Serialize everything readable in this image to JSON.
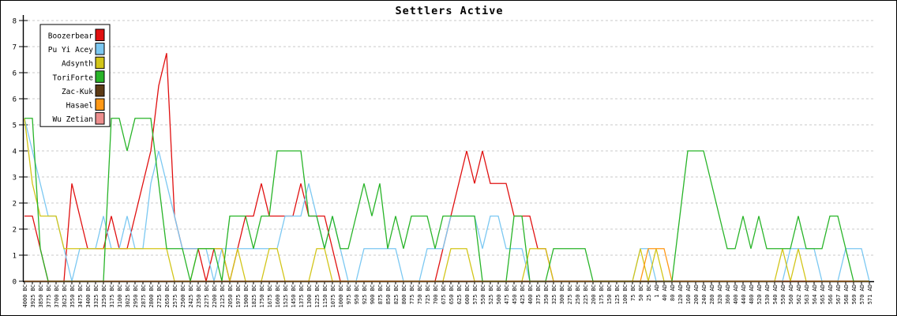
{
  "title": "Settlers Active",
  "colors": {
    "grid": "#c9c9c9",
    "axis": "#000000",
    "background": "#ffffff"
  },
  "chart_data": {
    "type": "line",
    "title": "Settlers Active",
    "ylim": [
      0,
      8
    ],
    "grid": "dashed-horizontal",
    "legend_position": "top-left",
    "y_ticks": {
      "values": [
        0,
        0.8,
        1.6,
        2.4,
        3.2,
        4.0,
        4.8,
        5.6,
        6.4,
        7.2,
        8.0
      ],
      "labels": [
        "0",
        "1",
        "2",
        "2",
        "3",
        "4",
        "5",
        "6",
        "6",
        "7",
        "8"
      ]
    },
    "x_tick_labels": [
      "4000 BC",
      "3925 BC",
      "3850 BC",
      "3775 BC",
      "3700 BC",
      "3625 BC",
      "3550 BC",
      "3475 BC",
      "3400 BC",
      "3325 BC",
      "3250 BC",
      "3175 BC",
      "3100 BC",
      "3025 BC",
      "2950 BC",
      "2875 BC",
      "2800 BC",
      "2725 BC",
      "2650 BC",
      "2575 BC",
      "2500 BC",
      "2425 BC",
      "2350 BC",
      "2275 BC",
      "2200 BC",
      "2125 BC",
      "2050 BC",
      "1975 BC",
      "1900 BC",
      "1825 BC",
      "1750 BC",
      "1675 BC",
      "1600 BC",
      "1525 BC",
      "1450 BC",
      "1375 BC",
      "1300 BC",
      "1225 BC",
      "1150 BC",
      "1075 BC",
      "1000 BC",
      "975 BC",
      "950 BC",
      "925 BC",
      "900 BC",
      "875 BC",
      "850 BC",
      "825 BC",
      "800 BC",
      "775 BC",
      "750 BC",
      "725 BC",
      "700 BC",
      "675 BC",
      "650 BC",
      "625 BC",
      "600 BC",
      "575 BC",
      "550 BC",
      "525 BC",
      "500 BC",
      "475 BC",
      "450 BC",
      "425 BC",
      "400 BC",
      "375 BC",
      "350 BC",
      "325 BC",
      "300 BC",
      "275 BC",
      "250 BC",
      "225 BC",
      "200 BC",
      "175 BC",
      "150 BC",
      "125 BC",
      "100 BC",
      "75 BC",
      "50 BC",
      "25 BC",
      "1 AD",
      "40 AD",
      "80 AD",
      "120 AD",
      "160 AD",
      "200 AD",
      "240 AD",
      "280 AD",
      "320 AD",
      "360 AD",
      "400 AD",
      "440 AD",
      "480 AD",
      "520 AD",
      "530 AD",
      "540 AD",
      "550 AD",
      "560 AD",
      "562 AD",
      "563 AD",
      "564 AD",
      "565 AD",
      "566 AD",
      "567 AD",
      "568 AD",
      "569 AD",
      "570 AD",
      "571 AD"
    ],
    "series": [
      {
        "name": "Boozerbear",
        "color": "#e01010",
        "values": [
          2,
          2,
          1,
          0,
          0,
          0,
          3,
          2,
          1,
          1,
          1,
          2,
          1,
          1,
          2,
          3,
          4,
          6,
          7,
          2,
          1,
          1,
          1,
          0,
          1,
          1,
          0,
          1,
          2,
          2,
          3,
          2,
          2,
          2,
          2,
          3,
          2,
          2,
          2,
          1,
          0,
          0,
          0,
          0,
          0,
          0,
          0,
          0,
          0,
          0,
          0,
          0,
          0,
          1,
          2,
          3,
          4,
          3,
          4,
          3,
          3,
          3,
          2,
          2,
          2,
          1,
          1,
          0,
          0,
          0,
          0,
          0,
          0,
          0,
          0,
          0,
          0,
          0,
          0,
          0,
          0,
          0,
          0,
          0,
          0,
          0,
          0,
          0,
          0,
          0,
          0,
          0,
          0,
          0,
          0,
          0,
          0,
          0,
          0,
          0,
          0,
          0,
          0,
          0,
          0,
          0,
          0,
          0
        ]
      },
      {
        "name": "Pu Yi Acey",
        "color": "#7bc8f2",
        "values": [
          5,
          4,
          3,
          2,
          2,
          1,
          0,
          1,
          1,
          1,
          2,
          1,
          1,
          2,
          1,
          1,
          3,
          4,
          3,
          2,
          1,
          1,
          1,
          1,
          0,
          1,
          1,
          1,
          1,
          1,
          1,
          1,
          1,
          2,
          2,
          2,
          3,
          2,
          1,
          2,
          1,
          0,
          0,
          1,
          1,
          1,
          1,
          1,
          0,
          0,
          0,
          1,
          1,
          1,
          2,
          2,
          2,
          2,
          1,
          2,
          2,
          1,
          1,
          1,
          0,
          0,
          0,
          0,
          0,
          0,
          0,
          0,
          0,
          0,
          0,
          0,
          0,
          0,
          1,
          1,
          0,
          0,
          0,
          0,
          0,
          0,
          0,
          0,
          0,
          0,
          0,
          0,
          0,
          0,
          0,
          0,
          0,
          1,
          1,
          1,
          1,
          0,
          0,
          0,
          1,
          1,
          1,
          0
        ]
      },
      {
        "name": "Adsynth",
        "color": "#d2c518",
        "values": [
          5,
          3,
          2,
          2,
          2,
          1,
          1,
          1,
          1,
          1,
          1,
          1,
          1,
          1,
          1,
          1,
          1,
          1,
          1,
          0,
          0,
          0,
          1,
          1,
          1,
          1,
          0,
          1,
          0,
          0,
          0,
          1,
          1,
          0,
          0,
          0,
          0,
          1,
          1,
          0,
          0,
          0,
          0,
          0,
          0,
          0,
          0,
          0,
          0,
          0,
          0,
          0,
          0,
          0,
          1,
          1,
          1,
          0,
          0,
          0,
          0,
          0,
          0,
          0,
          1,
          1,
          1,
          0,
          0,
          0,
          0,
          0,
          0,
          0,
          0,
          0,
          0,
          0,
          1,
          0,
          1,
          0,
          0,
          0,
          0,
          0,
          0,
          0,
          0,
          0,
          0,
          0,
          0,
          0,
          0,
          0,
          1,
          0,
          1,
          0,
          0,
          0,
          0,
          0,
          0,
          0,
          0,
          0
        ]
      },
      {
        "name": "ToriForte",
        "color": "#28b428",
        "values": [
          5,
          5,
          1,
          0,
          0,
          0,
          0,
          0,
          0,
          0,
          0,
          5,
          5,
          4,
          5,
          5,
          5,
          3,
          1,
          1,
          1,
          0,
          1,
          1,
          1,
          0,
          2,
          2,
          2,
          1,
          2,
          2,
          4,
          4,
          4,
          4,
          2,
          2,
          1,
          2,
          1,
          1,
          2,
          3,
          2,
          3,
          1,
          2,
          1,
          2,
          2,
          2,
          1,
          2,
          2,
          2,
          2,
          2,
          0,
          0,
          0,
          0,
          2,
          2,
          0,
          0,
          0,
          1,
          1,
          1,
          1,
          1,
          0,
          0,
          0,
          0,
          0,
          0,
          0,
          0,
          0,
          0,
          0,
          2,
          4,
          4,
          4,
          3,
          2,
          1,
          1,
          2,
          1,
          2,
          1,
          1,
          1,
          1,
          2,
          1,
          1,
          1,
          2,
          2,
          1,
          0,
          0,
          0
        ]
      },
      {
        "name": "Zac-Kuk",
        "color": "#5c3a15",
        "values": [
          0,
          0,
          0,
          0,
          0,
          0,
          0,
          0,
          0,
          0,
          0,
          0,
          0,
          0,
          0,
          0,
          0,
          0,
          0,
          0,
          0,
          0,
          0,
          0,
          0,
          0,
          0,
          0,
          0,
          0,
          0,
          0,
          0,
          0,
          0,
          0,
          0,
          0,
          0,
          0,
          0,
          0,
          0,
          0,
          0,
          0,
          0,
          0,
          0,
          0,
          0,
          0,
          0,
          0,
          0,
          0,
          0,
          0,
          0,
          0,
          0,
          0,
          0,
          0,
          0,
          0,
          0,
          0,
          0,
          0,
          0,
          0,
          0,
          0,
          0,
          0,
          0,
          0,
          0,
          0,
          0,
          0,
          0,
          0,
          0,
          0,
          0,
          0,
          0,
          0,
          0,
          0,
          0,
          0,
          0,
          0,
          0,
          0,
          0,
          0,
          0,
          0,
          0,
          0,
          0,
          0,
          0,
          0
        ]
      },
      {
        "name": "Hasael",
        "color": "#ff9815",
        "values": [
          0,
          0,
          0,
          0,
          0,
          0,
          0,
          0,
          0,
          0,
          0,
          0,
          0,
          0,
          0,
          0,
          0,
          0,
          0,
          0,
          0,
          0,
          0,
          0,
          0,
          0,
          0,
          0,
          0,
          0,
          0,
          0,
          0,
          0,
          0,
          0,
          0,
          0,
          0,
          0,
          0,
          0,
          0,
          0,
          0,
          0,
          0,
          0,
          0,
          0,
          0,
          0,
          0,
          0,
          0,
          0,
          0,
          0,
          0,
          0,
          0,
          0,
          0,
          0,
          0,
          0,
          0,
          0,
          0,
          0,
          0,
          0,
          0,
          0,
          0,
          0,
          0,
          0,
          0,
          1,
          1,
          1,
          0,
          0,
          0,
          0,
          0,
          0,
          0,
          0,
          0,
          0,
          0,
          0,
          0,
          0,
          0,
          0,
          0,
          0,
          0,
          0,
          0,
          0,
          0,
          0,
          0,
          0
        ]
      },
      {
        "name": "Wu Zetian",
        "color": "#ee8e8e",
        "values": [
          0,
          0,
          0,
          0,
          0,
          0,
          0,
          0,
          0,
          0,
          0,
          0,
          0,
          0,
          0,
          0,
          0,
          0,
          0,
          0,
          0,
          0,
          0,
          0,
          0,
          0,
          0,
          0,
          0,
          0,
          0,
          0,
          0,
          0,
          0,
          0,
          0,
          0,
          0,
          0,
          0,
          0,
          0,
          0,
          0,
          0,
          0,
          0,
          0,
          0,
          0,
          0,
          0,
          0,
          0,
          0,
          0,
          0,
          0,
          0,
          0,
          0,
          0,
          0,
          0,
          0,
          0,
          0,
          0,
          0,
          0,
          0,
          0,
          0,
          0,
          0,
          0,
          0,
          0,
          0,
          0,
          0,
          0,
          0,
          0,
          0,
          0,
          0,
          0,
          0,
          0,
          0,
          0,
          0,
          0,
          0,
          0,
          0,
          0,
          0,
          0,
          0,
          0,
          0,
          0,
          0,
          0,
          0
        ]
      }
    ]
  }
}
